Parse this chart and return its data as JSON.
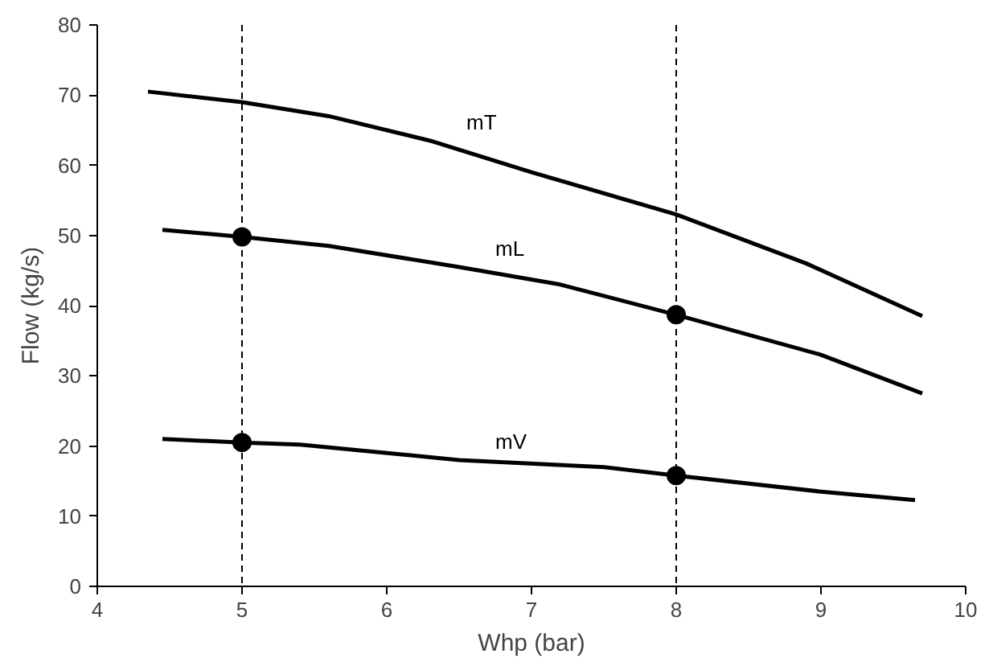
{
  "chart_data": {
    "type": "line",
    "xlabel": "Whp (bar)",
    "ylabel": "Flow (kg/s)",
    "xlim": [
      4,
      10
    ],
    "xticks": [
      4,
      5,
      6,
      7,
      8,
      9,
      10
    ],
    "ylim": [
      0,
      80
    ],
    "yticks": [
      0,
      10,
      20,
      30,
      40,
      50,
      60,
      70,
      80
    ],
    "grid": false,
    "line_style": "solid",
    "series": [
      {
        "name": "mT",
        "color": "#000000",
        "marker": "none",
        "x": [
          4.35,
          5,
          5.6,
          6.3,
          7,
          8,
          8.9,
          9.7
        ],
        "values": [
          70.5,
          69,
          67,
          63.5,
          59,
          53,
          46,
          38.5
        ]
      },
      {
        "name": "mL",
        "color": "#000000",
        "marker": "none",
        "x": [
          4.45,
          5,
          5.6,
          6.5,
          7.2,
          8,
          9,
          9.7
        ],
        "values": [
          50.8,
          49.8,
          48.5,
          45.5,
          43,
          38.7,
          33,
          27.5
        ]
      },
      {
        "name": "mV",
        "color": "#000000",
        "marker": "none",
        "x": [
          4.45,
          5,
          5.4,
          6.5,
          7.5,
          8,
          9,
          9.65
        ],
        "values": [
          21,
          20.5,
          20.2,
          18,
          17,
          15.8,
          13.5,
          12.3
        ]
      },
      {
        "type": "scatter",
        "color": "#000000",
        "marker": "circle",
        "x": [
          5,
          8,
          5,
          8
        ],
        "values": [
          49.8,
          38.7,
          20.5,
          15.8
        ]
      }
    ],
    "ref_lines": [
      {
        "axis": "x",
        "value": 5,
        "color": "#000000",
        "line_style": "dashed"
      },
      {
        "axis": "x",
        "value": 8,
        "color": "#000000",
        "line_style": "dashed"
      }
    ]
  }
}
